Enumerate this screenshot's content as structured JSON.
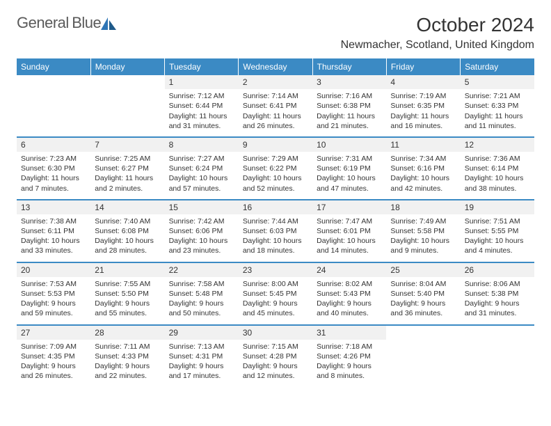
{
  "logo": {
    "text1": "General",
    "text2": "Blue",
    "icon_color": "#2e75b6"
  },
  "header": {
    "month_title": "October 2024",
    "location": "Newmacher, Scotland, United Kingdom"
  },
  "theme": {
    "header_bg": "#3b8ac4",
    "header_text": "#ffffff",
    "border_color": "#3b8ac4",
    "text_color": "#333333",
    "daynum_bg": "#f1f1f1"
  },
  "weekdays": [
    "Sunday",
    "Monday",
    "Tuesday",
    "Wednesday",
    "Thursday",
    "Friday",
    "Saturday"
  ],
  "weeks": [
    [
      {
        "day": "",
        "sunrise": "",
        "sunset": "",
        "daylight": ""
      },
      {
        "day": "",
        "sunrise": "",
        "sunset": "",
        "daylight": ""
      },
      {
        "day": "1",
        "sunrise": "Sunrise: 7:12 AM",
        "sunset": "Sunset: 6:44 PM",
        "daylight": "Daylight: 11 hours and 31 minutes."
      },
      {
        "day": "2",
        "sunrise": "Sunrise: 7:14 AM",
        "sunset": "Sunset: 6:41 PM",
        "daylight": "Daylight: 11 hours and 26 minutes."
      },
      {
        "day": "3",
        "sunrise": "Sunrise: 7:16 AM",
        "sunset": "Sunset: 6:38 PM",
        "daylight": "Daylight: 11 hours and 21 minutes."
      },
      {
        "day": "4",
        "sunrise": "Sunrise: 7:19 AM",
        "sunset": "Sunset: 6:35 PM",
        "daylight": "Daylight: 11 hours and 16 minutes."
      },
      {
        "day": "5",
        "sunrise": "Sunrise: 7:21 AM",
        "sunset": "Sunset: 6:33 PM",
        "daylight": "Daylight: 11 hours and 11 minutes."
      }
    ],
    [
      {
        "day": "6",
        "sunrise": "Sunrise: 7:23 AM",
        "sunset": "Sunset: 6:30 PM",
        "daylight": "Daylight: 11 hours and 7 minutes."
      },
      {
        "day": "7",
        "sunrise": "Sunrise: 7:25 AM",
        "sunset": "Sunset: 6:27 PM",
        "daylight": "Daylight: 11 hours and 2 minutes."
      },
      {
        "day": "8",
        "sunrise": "Sunrise: 7:27 AM",
        "sunset": "Sunset: 6:24 PM",
        "daylight": "Daylight: 10 hours and 57 minutes."
      },
      {
        "day": "9",
        "sunrise": "Sunrise: 7:29 AM",
        "sunset": "Sunset: 6:22 PM",
        "daylight": "Daylight: 10 hours and 52 minutes."
      },
      {
        "day": "10",
        "sunrise": "Sunrise: 7:31 AM",
        "sunset": "Sunset: 6:19 PM",
        "daylight": "Daylight: 10 hours and 47 minutes."
      },
      {
        "day": "11",
        "sunrise": "Sunrise: 7:34 AM",
        "sunset": "Sunset: 6:16 PM",
        "daylight": "Daylight: 10 hours and 42 minutes."
      },
      {
        "day": "12",
        "sunrise": "Sunrise: 7:36 AM",
        "sunset": "Sunset: 6:14 PM",
        "daylight": "Daylight: 10 hours and 38 minutes."
      }
    ],
    [
      {
        "day": "13",
        "sunrise": "Sunrise: 7:38 AM",
        "sunset": "Sunset: 6:11 PM",
        "daylight": "Daylight: 10 hours and 33 minutes."
      },
      {
        "day": "14",
        "sunrise": "Sunrise: 7:40 AM",
        "sunset": "Sunset: 6:08 PM",
        "daylight": "Daylight: 10 hours and 28 minutes."
      },
      {
        "day": "15",
        "sunrise": "Sunrise: 7:42 AM",
        "sunset": "Sunset: 6:06 PM",
        "daylight": "Daylight: 10 hours and 23 minutes."
      },
      {
        "day": "16",
        "sunrise": "Sunrise: 7:44 AM",
        "sunset": "Sunset: 6:03 PM",
        "daylight": "Daylight: 10 hours and 18 minutes."
      },
      {
        "day": "17",
        "sunrise": "Sunrise: 7:47 AM",
        "sunset": "Sunset: 6:01 PM",
        "daylight": "Daylight: 10 hours and 14 minutes."
      },
      {
        "day": "18",
        "sunrise": "Sunrise: 7:49 AM",
        "sunset": "Sunset: 5:58 PM",
        "daylight": "Daylight: 10 hours and 9 minutes."
      },
      {
        "day": "19",
        "sunrise": "Sunrise: 7:51 AM",
        "sunset": "Sunset: 5:55 PM",
        "daylight": "Daylight: 10 hours and 4 minutes."
      }
    ],
    [
      {
        "day": "20",
        "sunrise": "Sunrise: 7:53 AM",
        "sunset": "Sunset: 5:53 PM",
        "daylight": "Daylight: 9 hours and 59 minutes."
      },
      {
        "day": "21",
        "sunrise": "Sunrise: 7:55 AM",
        "sunset": "Sunset: 5:50 PM",
        "daylight": "Daylight: 9 hours and 55 minutes."
      },
      {
        "day": "22",
        "sunrise": "Sunrise: 7:58 AM",
        "sunset": "Sunset: 5:48 PM",
        "daylight": "Daylight: 9 hours and 50 minutes."
      },
      {
        "day": "23",
        "sunrise": "Sunrise: 8:00 AM",
        "sunset": "Sunset: 5:45 PM",
        "daylight": "Daylight: 9 hours and 45 minutes."
      },
      {
        "day": "24",
        "sunrise": "Sunrise: 8:02 AM",
        "sunset": "Sunset: 5:43 PM",
        "daylight": "Daylight: 9 hours and 40 minutes."
      },
      {
        "day": "25",
        "sunrise": "Sunrise: 8:04 AM",
        "sunset": "Sunset: 5:40 PM",
        "daylight": "Daylight: 9 hours and 36 minutes."
      },
      {
        "day": "26",
        "sunrise": "Sunrise: 8:06 AM",
        "sunset": "Sunset: 5:38 PM",
        "daylight": "Daylight: 9 hours and 31 minutes."
      }
    ],
    [
      {
        "day": "27",
        "sunrise": "Sunrise: 7:09 AM",
        "sunset": "Sunset: 4:35 PM",
        "daylight": "Daylight: 9 hours and 26 minutes."
      },
      {
        "day": "28",
        "sunrise": "Sunrise: 7:11 AM",
        "sunset": "Sunset: 4:33 PM",
        "daylight": "Daylight: 9 hours and 22 minutes."
      },
      {
        "day": "29",
        "sunrise": "Sunrise: 7:13 AM",
        "sunset": "Sunset: 4:31 PM",
        "daylight": "Daylight: 9 hours and 17 minutes."
      },
      {
        "day": "30",
        "sunrise": "Sunrise: 7:15 AM",
        "sunset": "Sunset: 4:28 PM",
        "daylight": "Daylight: 9 hours and 12 minutes."
      },
      {
        "day": "31",
        "sunrise": "Sunrise: 7:18 AM",
        "sunset": "Sunset: 4:26 PM",
        "daylight": "Daylight: 9 hours and 8 minutes."
      },
      {
        "day": "",
        "sunrise": "",
        "sunset": "",
        "daylight": ""
      },
      {
        "day": "",
        "sunrise": "",
        "sunset": "",
        "daylight": ""
      }
    ]
  ]
}
